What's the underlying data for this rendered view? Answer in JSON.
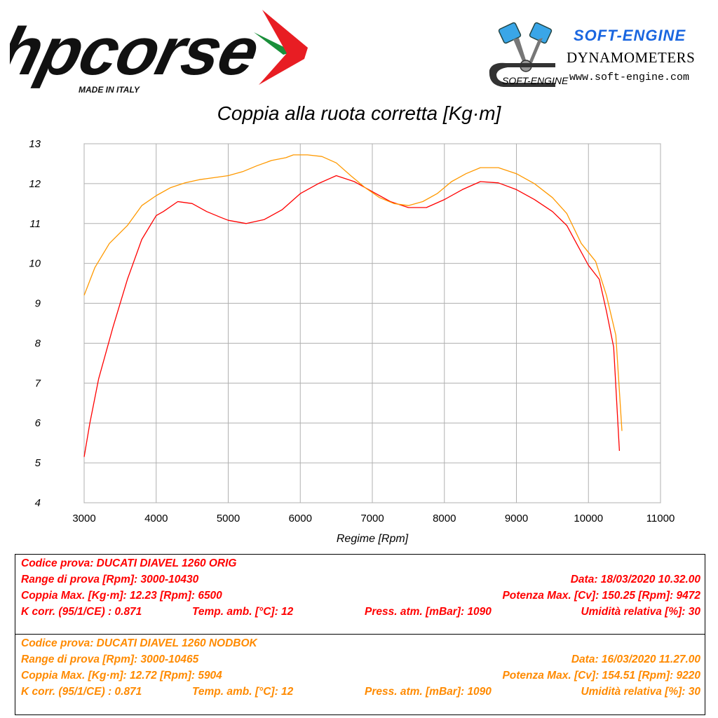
{
  "header": {
    "brand_left": "hpcorse",
    "brand_left_tag": "MADE IN ITALY",
    "brand_right_title": "SOFT-ENGINE",
    "brand_right_sub": "DYNAMOMETERS",
    "brand_right_url": "www.soft-engine.com",
    "brand_right_logo_text": "SOFT-ENGINE"
  },
  "chart_data": {
    "type": "line",
    "title": "Coppia alla ruota corretta [Kg·m]",
    "xlabel": "Regime [Rpm]",
    "ylabel": "",
    "xlim": [
      3000,
      11000
    ],
    "ylim": [
      4,
      13
    ],
    "x_ticks": [
      "3000",
      "4000",
      "5000",
      "6000",
      "7000",
      "8000",
      "9000",
      "10000",
      "11000"
    ],
    "y_ticks": [
      "4",
      "5",
      "6",
      "7",
      "8",
      "9",
      "10",
      "11",
      "12",
      "13"
    ],
    "grid": true,
    "series": [
      {
        "color": "#ff0000",
        "points": [
          [
            3000,
            5.15
          ],
          [
            3080,
            6.0
          ],
          [
            3200,
            7.1
          ],
          [
            3400,
            8.4
          ],
          [
            3600,
            9.6
          ],
          [
            3800,
            10.6
          ],
          [
            4000,
            11.2
          ],
          [
            4100,
            11.3
          ],
          [
            4300,
            11.55
          ],
          [
            4500,
            11.5
          ],
          [
            4700,
            11.3
          ],
          [
            4900,
            11.15
          ],
          [
            5000,
            11.08
          ],
          [
            5250,
            11.0
          ],
          [
            5500,
            11.1
          ],
          [
            5750,
            11.35
          ],
          [
            6000,
            11.75
          ],
          [
            6250,
            12.0
          ],
          [
            6500,
            12.2
          ],
          [
            6750,
            12.05
          ],
          [
            7000,
            11.8
          ],
          [
            7250,
            11.55
          ],
          [
            7500,
            11.4
          ],
          [
            7750,
            11.4
          ],
          [
            8000,
            11.6
          ],
          [
            8250,
            11.85
          ],
          [
            8500,
            12.05
          ],
          [
            8750,
            12.02
          ],
          [
            9000,
            11.85
          ],
          [
            9250,
            11.6
          ],
          [
            9500,
            11.3
          ],
          [
            9700,
            10.95
          ],
          [
            9850,
            10.45
          ],
          [
            10000,
            9.95
          ],
          [
            10150,
            9.6
          ],
          [
            10250,
            8.8
          ],
          [
            10350,
            7.9
          ],
          [
            10430,
            5.3
          ]
        ]
      },
      {
        "color": "#ff9900",
        "points": [
          [
            3000,
            9.2
          ],
          [
            3150,
            9.9
          ],
          [
            3350,
            10.5
          ],
          [
            3600,
            10.95
          ],
          [
            3800,
            11.45
          ],
          [
            4000,
            11.7
          ],
          [
            4200,
            11.9
          ],
          [
            4400,
            12.02
          ],
          [
            4600,
            12.1
          ],
          [
            4800,
            12.15
          ],
          [
            5000,
            12.2
          ],
          [
            5200,
            12.3
          ],
          [
            5400,
            12.45
          ],
          [
            5600,
            12.58
          ],
          [
            5800,
            12.65
          ],
          [
            5904,
            12.72
          ],
          [
            6100,
            12.72
          ],
          [
            6300,
            12.68
          ],
          [
            6500,
            12.52
          ],
          [
            6700,
            12.2
          ],
          [
            6900,
            11.9
          ],
          [
            7100,
            11.65
          ],
          [
            7300,
            11.5
          ],
          [
            7500,
            11.45
          ],
          [
            7700,
            11.55
          ],
          [
            7900,
            11.75
          ],
          [
            8100,
            12.05
          ],
          [
            8300,
            12.25
          ],
          [
            8500,
            12.4
          ],
          [
            8750,
            12.4
          ],
          [
            9000,
            12.25
          ],
          [
            9250,
            12.0
          ],
          [
            9500,
            11.65
          ],
          [
            9700,
            11.25
          ],
          [
            9900,
            10.5
          ],
          [
            10100,
            10.05
          ],
          [
            10250,
            9.2
          ],
          [
            10380,
            8.2
          ],
          [
            10465,
            5.8
          ]
        ]
      }
    ]
  },
  "tests": [
    {
      "color": "#ff0000",
      "codice": "Codice prova: DUCATI DIAVEL 1260 ORIG",
      "range": "Range di prova [Rpm]: 3000-10430",
      "data": "Data: 18/03/2020   10.32.00",
      "coppia": "Coppia Max. [Kg·m]: 12.23   [Rpm]: 6500",
      "potenza": "Potenza Max. [Cv]: 150.25   [Rpm]: 9472",
      "kcorr": "K corr. (95/1/CE) : 0.871",
      "temp": "Temp. amb. [°C]: 12",
      "press": "Press. atm. [mBar]: 1090",
      "umid": "Umidità relativa [%]: 30"
    },
    {
      "color": "#ff8a00",
      "codice": "Codice prova: DUCATI DIAVEL 1260 NODBOK",
      "range": "Range di prova [Rpm]: 3000-10465",
      "data": "Data: 16/03/2020   11.27.00",
      "coppia": "Coppia Max. [Kg·m]: 12.72   [Rpm]: 5904",
      "potenza": "Potenza Max. [Cv]: 154.51   [Rpm]: 9220",
      "kcorr": "K corr. (95/1/CE) : 0.871",
      "temp": "Temp. amb. [°C]: 12",
      "press": "Press. atm. [mBar]: 1090",
      "umid": "Umidità relativa [%]: 30"
    }
  ]
}
